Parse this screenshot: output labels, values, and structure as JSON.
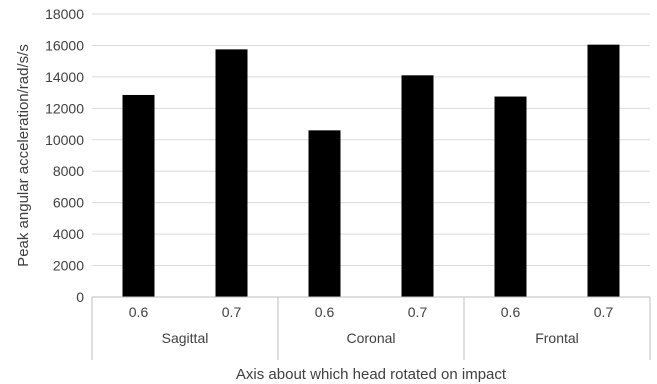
{
  "chart_data": {
    "type": "bar",
    "ylabel": "Peak angular acceleration/rad/s/s",
    "xlabel": "Axis about which head rotated on impact",
    "ylim": [
      0,
      18000
    ],
    "yticks": [
      0,
      2000,
      4000,
      6000,
      8000,
      10000,
      12000,
      14000,
      16000,
      18000
    ],
    "groups": [
      {
        "label": "Sagittal",
        "categories": [
          "0.6",
          "0.7"
        ],
        "values": [
          12850,
          15750
        ]
      },
      {
        "label": "Coronal",
        "categories": [
          "0.6",
          "0.7"
        ],
        "values": [
          10600,
          14100
        ]
      },
      {
        "label": "Frontal",
        "categories": [
          "0.6",
          "0.7"
        ],
        "values": [
          12750,
          16050
        ]
      }
    ],
    "grid": true,
    "legend": "none",
    "colors": {
      "bar": "#000000",
      "grid": "#d9d9d9",
      "axis": "#bfbfbf",
      "text": "#404040"
    }
  }
}
